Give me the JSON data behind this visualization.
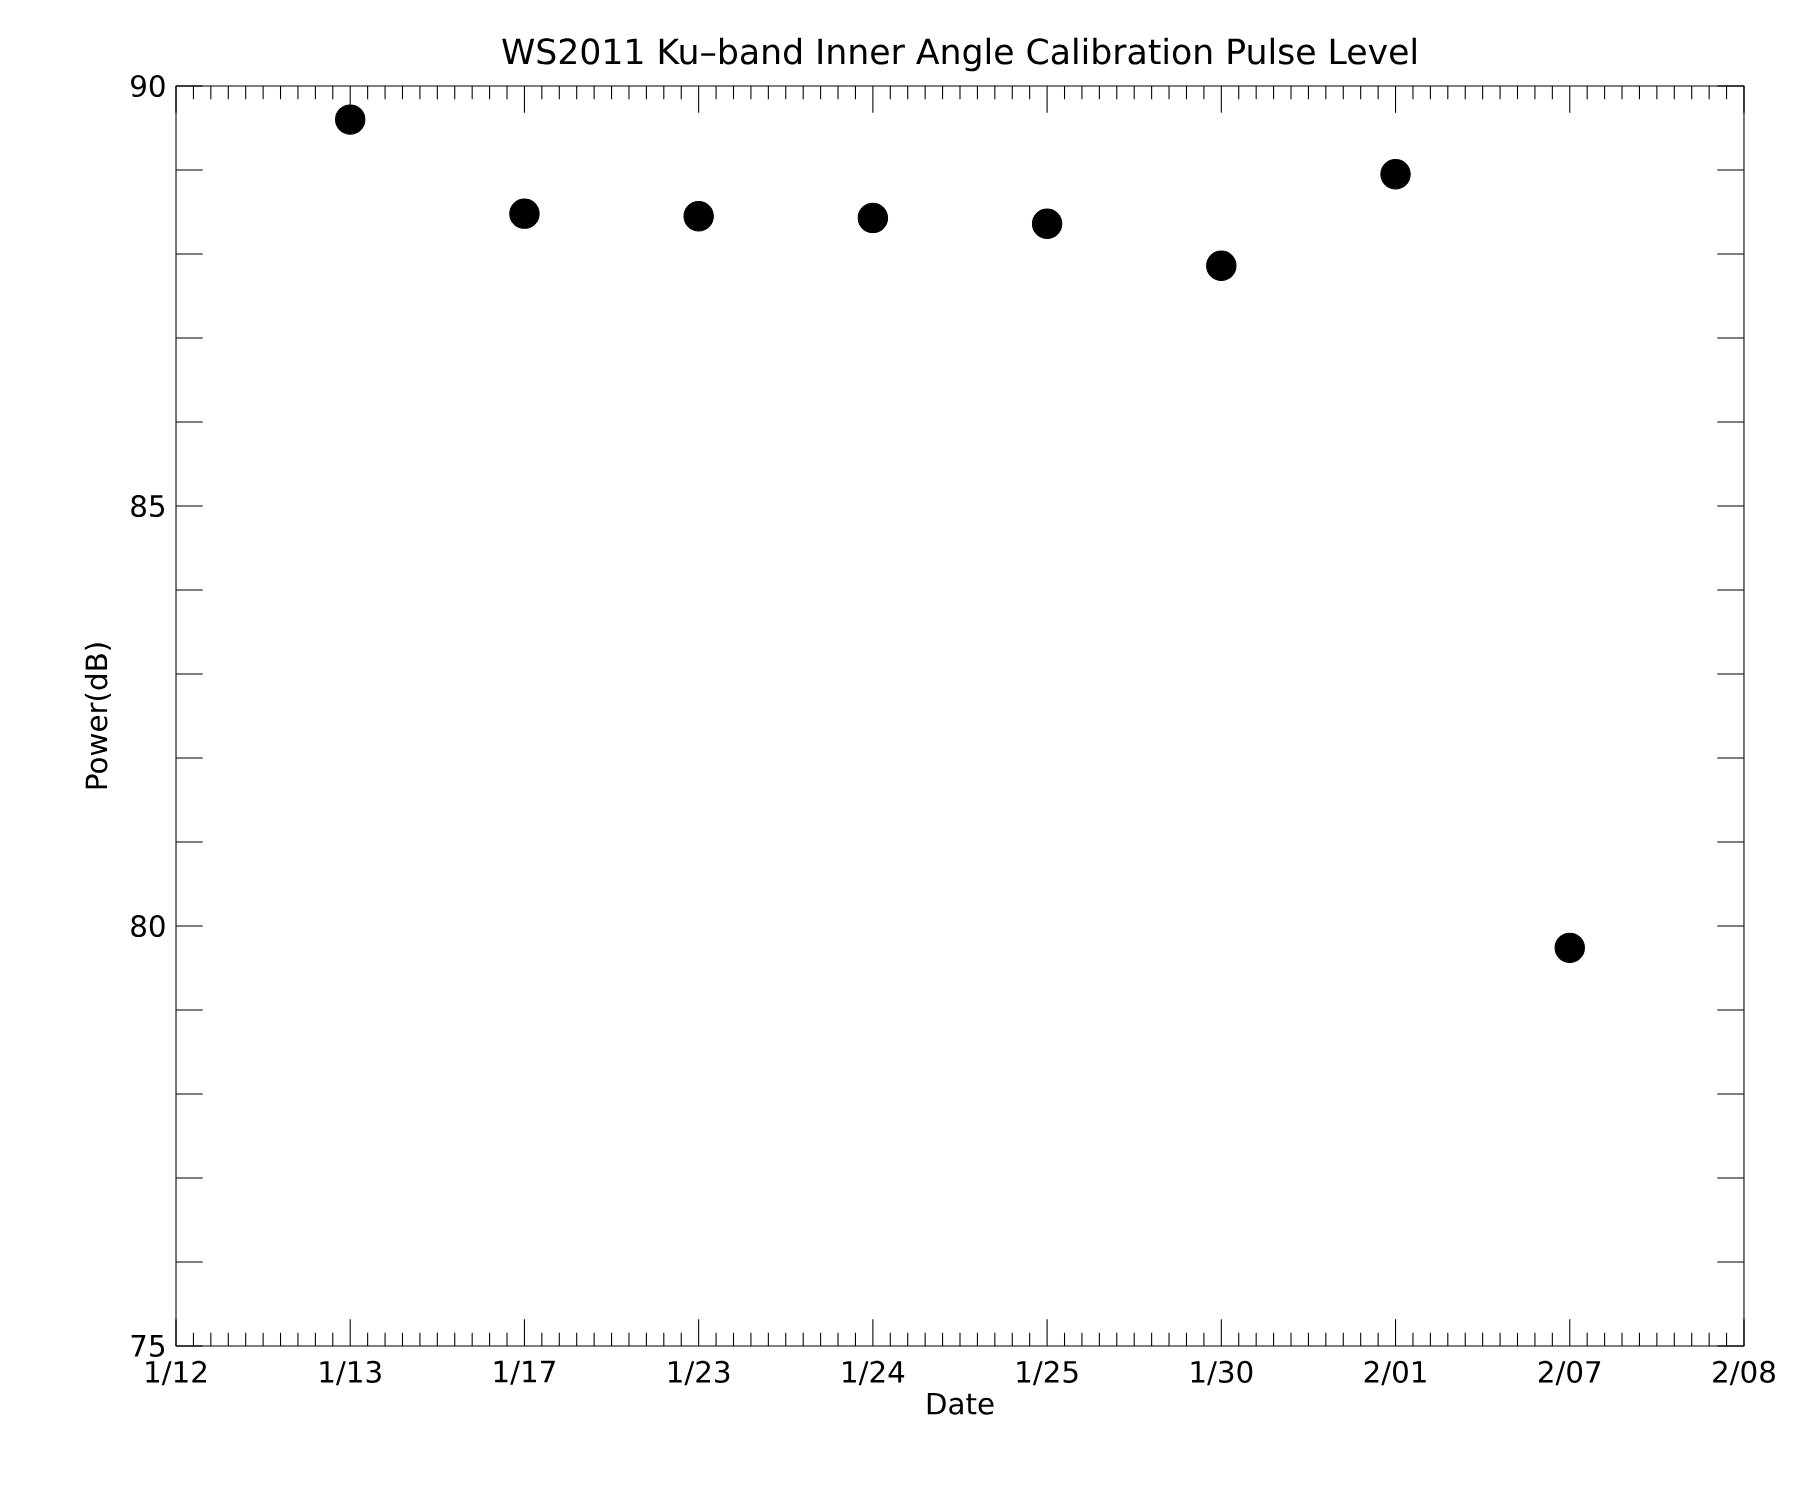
{
  "chart_data": {
    "type": "scatter",
    "title": "WS2011 Ku–band Inner Angle Calibration Pulse Level",
    "xlabel": "Date",
    "ylabel": "Power(dB)",
    "categories": [
      "1/12",
      "1/13",
      "1/17",
      "1/23",
      "1/24",
      "1/25",
      "1/30",
      "2/01",
      "2/07",
      "2/08"
    ],
    "series": [
      {
        "color": "#000000",
        "values": [
          null,
          89.6,
          88.48,
          88.45,
          88.43,
          88.36,
          87.86,
          88.95,
          79.74,
          null
        ]
      }
    ],
    "ylim": [
      75,
      90
    ],
    "yticks": [
      75,
      {
        "value": 76,
        "label": null
      },
      {
        "value": 77,
        "label": null
      },
      {
        "value": 78,
        "label": null
      },
      {
        "value": 79,
        "label": null
      },
      80,
      {
        "value": 81,
        "label": null
      },
      {
        "value": 82,
        "label": null
      },
      {
        "value": 83,
        "label": null
      },
      {
        "value": 84,
        "label": null
      },
      85,
      {
        "value": 86,
        "label": null
      },
      {
        "value": 87,
        "label": null
      },
      {
        "value": 88,
        "label": null
      },
      {
        "value": 89,
        "label": null
      },
      90
    ],
    "marker": "circle",
    "grid": false
  }
}
